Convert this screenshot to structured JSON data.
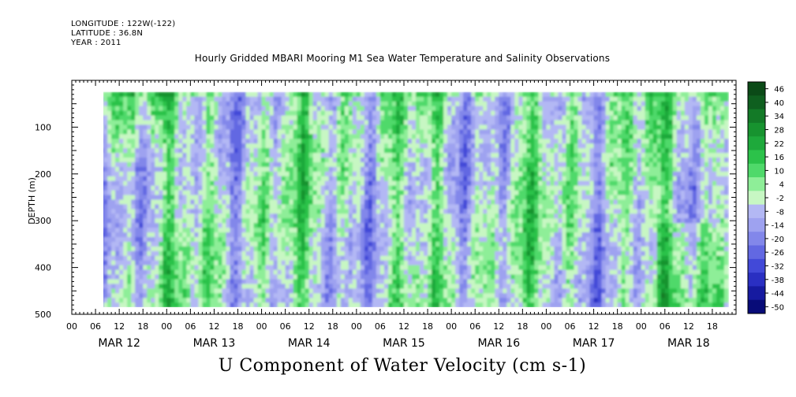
{
  "header": {
    "longitude": "LONGITUDE : 122W(-122)",
    "latitude": "LATITUDE : 36.8N",
    "year": "YEAR : 2011"
  },
  "title": "Hourly Gridded MBARI Mooring M1 Sea Water Temperature and Salinity Observations",
  "bottom_title": "U Component of Water Velocity (cm s-1)",
  "chart_data": {
    "type": "heatmap",
    "title": "Hourly Gridded MBARI Mooring M1 Sea Water Temperature and Salinity Observations",
    "variable": "U Component of Water Velocity (cm s-1)",
    "ylabel": "DEPTH (m)",
    "ylim": [
      500,
      0
    ],
    "yticks": [
      100,
      200,
      300,
      400,
      500
    ],
    "x_range_hours": [
      0,
      168
    ],
    "x_data_start_hour": 6,
    "x_data_end_hour": 166,
    "x_hour_ticks": [
      "00",
      "06",
      "12",
      "18",
      "00",
      "06",
      "12",
      "18",
      "00",
      "06",
      "12",
      "18",
      "00",
      "06",
      "12",
      "18",
      "00",
      "06",
      "12",
      "18",
      "00",
      "06",
      "12",
      "18",
      "00",
      "06",
      "12",
      "18"
    ],
    "x_day_labels": [
      "MAR 12",
      "MAR 13",
      "MAR 14",
      "MAR 15",
      "MAR 16",
      "MAR 17",
      "MAR 18"
    ],
    "depth_range_data": [
      25,
      485
    ],
    "colorbar": {
      "levels": [
        "46",
        "40",
        "34",
        "28",
        "22",
        "16",
        "10",
        "4",
        "-2",
        "-8",
        "-14",
        "-20",
        "-26",
        "-32",
        "-38",
        "-44",
        "-50"
      ],
      "min": -50,
      "max": 50
    },
    "pattern_note": "alternating vertical bands of positive (green) and negative (blue) U velocity over time; stronger positive values near surface on Mar 12 and at depth on Mar 18"
  }
}
